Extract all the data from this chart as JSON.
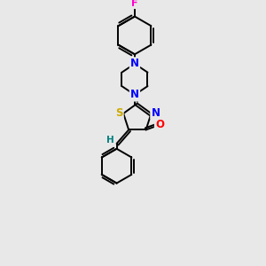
{
  "background_color": "#e8e8e8",
  "atom_colors": {
    "C": "#000000",
    "N": "#0000ff",
    "O": "#ff0000",
    "S": "#ccaa00",
    "F": "#ff00cc",
    "H": "#008080"
  },
  "bond_color": "#000000",
  "font_size": 7.5,
  "line_width": 1.4
}
